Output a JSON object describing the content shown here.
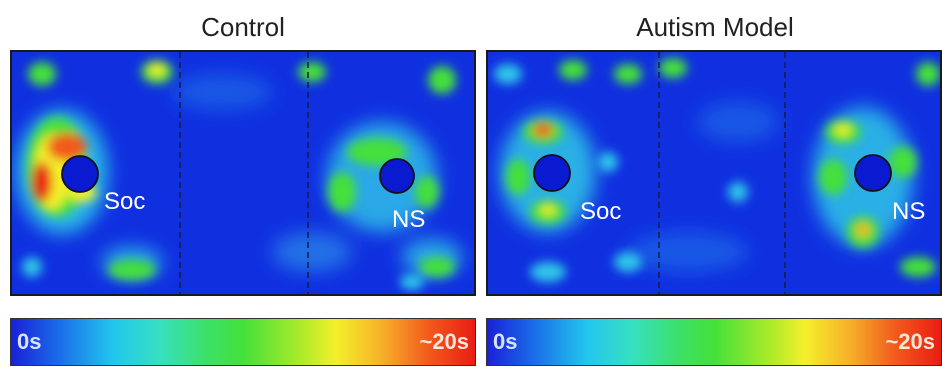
{
  "panels": [
    {
      "title": "Control",
      "label_left": "Soc",
      "label_right": "NS"
    },
    {
      "title": "Autism Model",
      "label_left": "Soc",
      "label_right": "NS"
    }
  ],
  "colorbar": {
    "min_label": "0s",
    "max_label": "~20s"
  },
  "colors": {
    "background": "#1030e0",
    "hot": "#e81c14",
    "warm": "#f4f02a",
    "cool": "#3ce06a"
  }
}
